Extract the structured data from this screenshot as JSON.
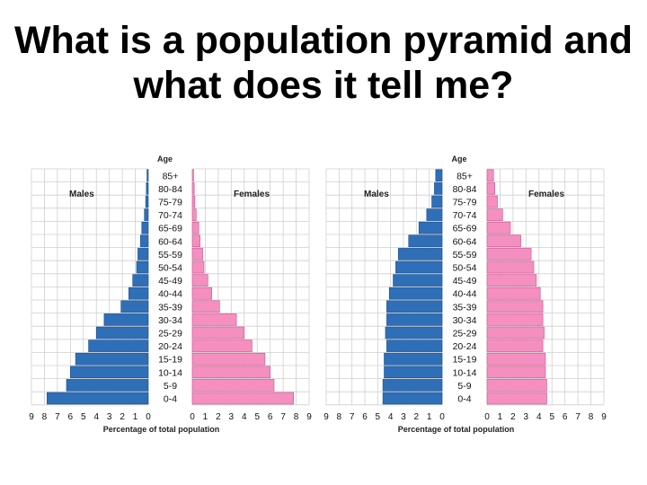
{
  "title": "What is a population pyramid and what does it tell me?",
  "colors": {
    "males": "#2f6fb7",
    "males_stroke": "#1c4f8c",
    "females": "#f48fbf",
    "females_stroke": "#c85590",
    "grid": "#cfcfcf"
  },
  "chart_data": [
    {
      "type": "bar",
      "orientation": "horizontal",
      "categories": [
        "85+",
        "80-84",
        "75-79",
        "70-74",
        "65-69",
        "60-64",
        "55-59",
        "50-54",
        "45-49",
        "40-44",
        "35-39",
        "30-34",
        "25-29",
        "20-24",
        "15-19",
        "10-14",
        "5-9",
        "0-4"
      ],
      "category_label": "Age",
      "series": [
        {
          "name": "Males",
          "values": [
            0.1,
            0.15,
            0.2,
            0.3,
            0.5,
            0.6,
            0.8,
            0.9,
            1.2,
            1.5,
            2.1,
            3.4,
            4.0,
            4.6,
            5.6,
            6.0,
            6.3,
            7.8
          ]
        },
        {
          "name": "Females",
          "values": [
            0.1,
            0.15,
            0.2,
            0.3,
            0.5,
            0.6,
            0.8,
            0.9,
            1.2,
            1.5,
            2.1,
            3.4,
            4.0,
            4.6,
            5.6,
            6.0,
            6.3,
            7.8
          ]
        }
      ],
      "xlabel": "Percentage of total population",
      "xticks_left": [
        "9",
        "8",
        "7",
        "6",
        "5",
        "4",
        "3",
        "2",
        "1",
        "0"
      ],
      "xticks_right": [
        "0",
        "1",
        "2",
        "3",
        "4",
        "5",
        "6",
        "7",
        "8",
        "9"
      ],
      "xlim": [
        0,
        9
      ]
    },
    {
      "type": "bar",
      "orientation": "horizontal",
      "categories": [
        "85+",
        "80-84",
        "75-79",
        "70-74",
        "65-69",
        "60-64",
        "55-59",
        "50-54",
        "45-49",
        "40-44",
        "35-39",
        "30-34",
        "25-29",
        "20-24",
        "15-19",
        "10-14",
        "5-9",
        "0-4"
      ],
      "category_label": "Age",
      "series": [
        {
          "name": "Males",
          "values": [
            0.5,
            0.6,
            0.8,
            1.2,
            1.8,
            2.6,
            3.4,
            3.6,
            3.8,
            4.1,
            4.3,
            4.3,
            4.4,
            4.3,
            4.5,
            4.5,
            4.6,
            4.6
          ]
        },
        {
          "name": "Females",
          "values": [
            0.5,
            0.6,
            0.8,
            1.2,
            1.8,
            2.6,
            3.4,
            3.6,
            3.8,
            4.1,
            4.3,
            4.3,
            4.4,
            4.3,
            4.5,
            4.5,
            4.6,
            4.6
          ]
        }
      ],
      "xlabel": "Percentage of total population",
      "xticks_left": [
        "9",
        "8",
        "7",
        "6",
        "5",
        "4",
        "3",
        "2",
        "1",
        "0"
      ],
      "xticks_right": [
        "0",
        "1",
        "2",
        "3",
        "4",
        "5",
        "6",
        "7",
        "8",
        "9"
      ],
      "xlim": [
        0,
        9
      ]
    }
  ]
}
